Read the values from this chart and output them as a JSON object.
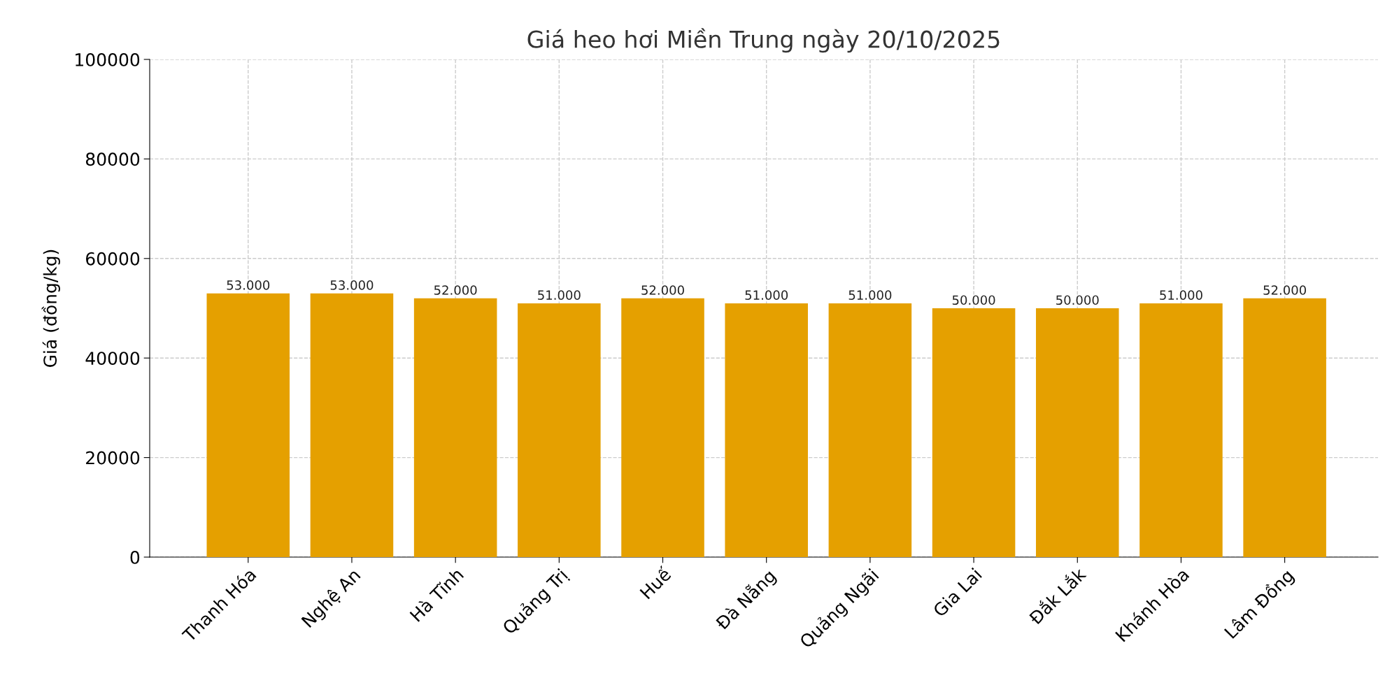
{
  "chart_data": {
    "type": "bar",
    "title": "Giá heo hơi Miền Trung ngày 20/10/2025",
    "ylabel": "Giá (đồng/kg)",
    "categories": [
      "Thanh Hóa",
      "Nghệ An",
      "Hà Tĩnh",
      "Quảng Trị",
      "Huế",
      "Đà Nẵng",
      "Quảng Ngãi",
      "Gia Lai",
      "Đắk Lắk",
      "Khánh Hòa",
      "Lâm Đồng"
    ],
    "values": [
      53000,
      53000,
      52000,
      51000,
      52000,
      51000,
      51000,
      50000,
      50000,
      51000,
      52000
    ],
    "value_labels": [
      "53.000",
      "53.000",
      "52.000",
      "51.000",
      "52.000",
      "51.000",
      "51.000",
      "50.000",
      "50.000",
      "51.000",
      "52.000"
    ],
    "color": "#e5a000",
    "ylim": [
      0,
      100000
    ],
    "yticks": [
      0,
      20000,
      40000,
      60000,
      80000,
      100000
    ],
    "grid": true
  }
}
